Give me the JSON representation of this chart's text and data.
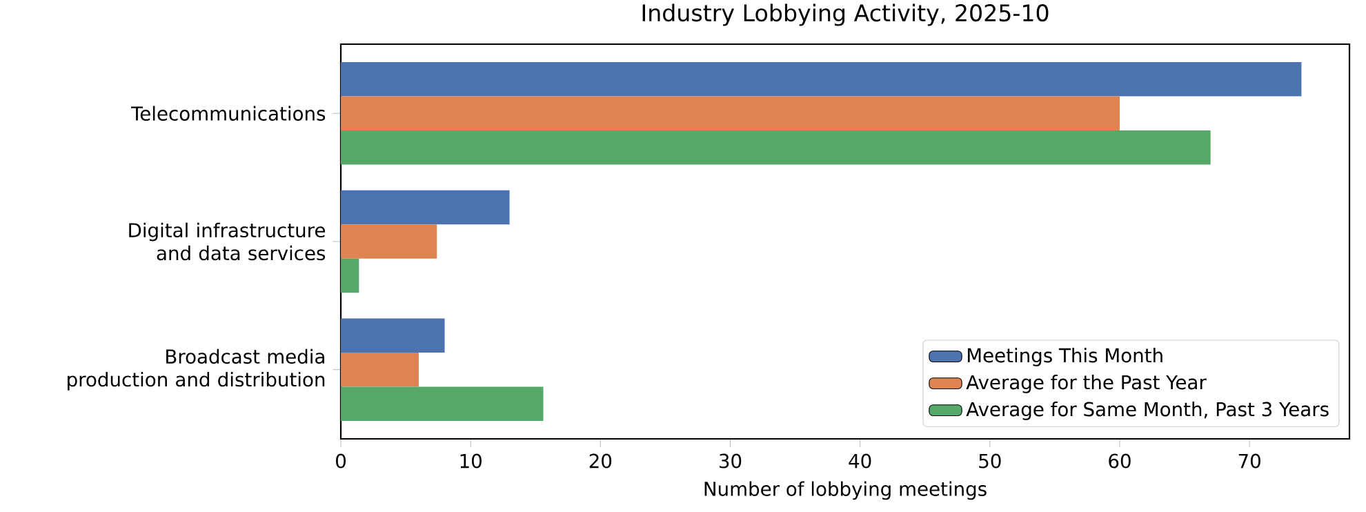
{
  "chart_data": {
    "type": "bar",
    "orientation": "horizontal",
    "title": "Industry Lobbying Activity, 2025-10",
    "xlabel": "Number of lobbying meetings",
    "categories": [
      "Telecommunications",
      "Digital infrastructure and data services",
      "Broadcast media production and distribution"
    ],
    "series": [
      {
        "name": "Meetings This Month",
        "color": "#4c72b0",
        "values": [
          74,
          13.0,
          8.0
        ]
      },
      {
        "name": "Average for the Past Year",
        "color": "#dd8452",
        "values": [
          60,
          7.4,
          6.0
        ]
      },
      {
        "name": "Average for Same Month, Past 3 Years",
        "color": "#55a868",
        "values": [
          67,
          1.4,
          15.6
        ]
      }
    ],
    "xlim": [
      0,
      77.7
    ],
    "xticks": [
      0,
      10,
      20,
      30,
      40,
      50,
      60,
      70
    ],
    "legend": "bottom right",
    "grid": false
  }
}
